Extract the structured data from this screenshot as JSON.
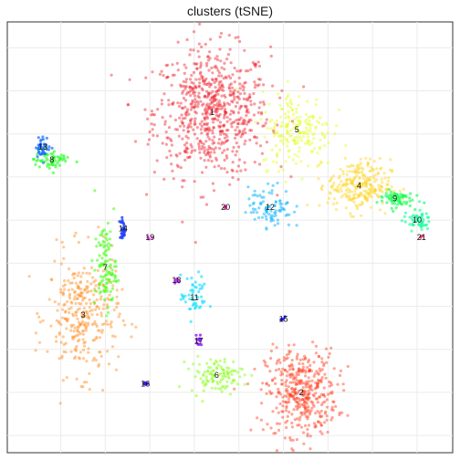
{
  "chart_data": {
    "type": "scatter",
    "title": "clusters (tSNE)",
    "xlabel": "",
    "ylabel": "",
    "grid": true,
    "axis_ticks_shown": false,
    "xlim": [
      0,
      100
    ],
    "ylim": [
      0,
      100
    ],
    "clusters": [
      {
        "label": "1",
        "color": "#f0202a",
        "center": [
          46,
          79
        ],
        "spread": [
          6.5,
          7.5
        ],
        "count": 700,
        "opacity": 0.45
      },
      {
        "label": "2",
        "color": "#ff3a1a",
        "center": [
          66,
          14
        ],
        "spread": [
          4.0,
          5.0
        ],
        "count": 420,
        "opacity": 0.45
      },
      {
        "label": "3",
        "color": "#ff8a1a",
        "center": [
          17,
          32
        ],
        "spread": [
          4.0,
          7.0
        ],
        "count": 320,
        "opacity": 0.45
      },
      {
        "label": "4",
        "color": "#ffd21a",
        "center": [
          79,
          62
        ],
        "spread": [
          3.5,
          3.0
        ],
        "count": 260,
        "opacity": 0.45
      },
      {
        "label": "5",
        "color": "#e3ff1a",
        "center": [
          65,
          75
        ],
        "spread": [
          4.0,
          4.5
        ],
        "count": 200,
        "opacity": 0.45
      },
      {
        "label": "6",
        "color": "#8aff1a",
        "center": [
          47,
          18
        ],
        "spread": [
          3.0,
          2.0
        ],
        "count": 110,
        "opacity": 0.5
      },
      {
        "label": "7",
        "color": "#4cff1a",
        "center": [
          22,
          43
        ],
        "spread": [
          1.2,
          5.0
        ],
        "count": 110,
        "opacity": 0.6
      },
      {
        "label": "8",
        "color": "#2bff2b",
        "center": [
          10,
          68
        ],
        "spread": [
          2.0,
          1.2
        ],
        "count": 60,
        "opacity": 0.65
      },
      {
        "label": "9",
        "color": "#1aff55",
        "center": [
          87,
          59
        ],
        "spread": [
          2.0,
          1.0
        ],
        "count": 70,
        "opacity": 0.65
      },
      {
        "label": "10",
        "color": "#1aff9e",
        "center": [
          92,
          54
        ],
        "spread": [
          1.5,
          1.2
        ],
        "count": 50,
        "opacity": 0.65
      },
      {
        "label": "11",
        "color": "#1ae0ff",
        "center": [
          42,
          36
        ],
        "spread": [
          1.5,
          2.5
        ],
        "count": 50,
        "opacity": 0.65
      },
      {
        "label": "12",
        "color": "#1ab8ff",
        "center": [
          59,
          57
        ],
        "spread": [
          2.5,
          2.5
        ],
        "count": 90,
        "opacity": 0.55
      },
      {
        "label": "13",
        "color": "#1a6eff",
        "center": [
          8,
          71
        ],
        "spread": [
          0.8,
          1.2
        ],
        "count": 40,
        "opacity": 0.7
      },
      {
        "label": "14",
        "color": "#1a3cff",
        "center": [
          26,
          52
        ],
        "spread": [
          0.4,
          1.2
        ],
        "count": 25,
        "opacity": 0.8
      },
      {
        "label": "15",
        "color": "#1a1aff",
        "center": [
          62,
          31
        ],
        "spread": [
          0.3,
          0.3
        ],
        "count": 5,
        "opacity": 0.9
      },
      {
        "label": "16",
        "color": "#3a1aff",
        "center": [
          31,
          16
        ],
        "spread": [
          0.4,
          0.2
        ],
        "count": 6,
        "opacity": 0.9
      },
      {
        "label": "17",
        "color": "#8a1aff",
        "center": [
          43,
          26
        ],
        "spread": [
          0.4,
          1.0
        ],
        "count": 12,
        "opacity": 0.8
      },
      {
        "label": "18",
        "color": "#c81aff",
        "center": [
          38,
          40
        ],
        "spread": [
          0.3,
          0.5
        ],
        "count": 6,
        "opacity": 0.8
      },
      {
        "label": "19",
        "color": "#ff1aee",
        "center": [
          32,
          50
        ],
        "spread": [
          0.3,
          0.2
        ],
        "count": 3,
        "opacity": 0.8
      },
      {
        "label": "20",
        "color": "#ff1a9e",
        "center": [
          49,
          57
        ],
        "spread": [
          0.3,
          0.3
        ],
        "count": 4,
        "opacity": 0.8
      },
      {
        "label": "21",
        "color": "#ff1a55",
        "center": [
          93,
          50
        ],
        "spread": [
          0.2,
          0.2
        ],
        "count": 2,
        "opacity": 0.8
      }
    ]
  }
}
